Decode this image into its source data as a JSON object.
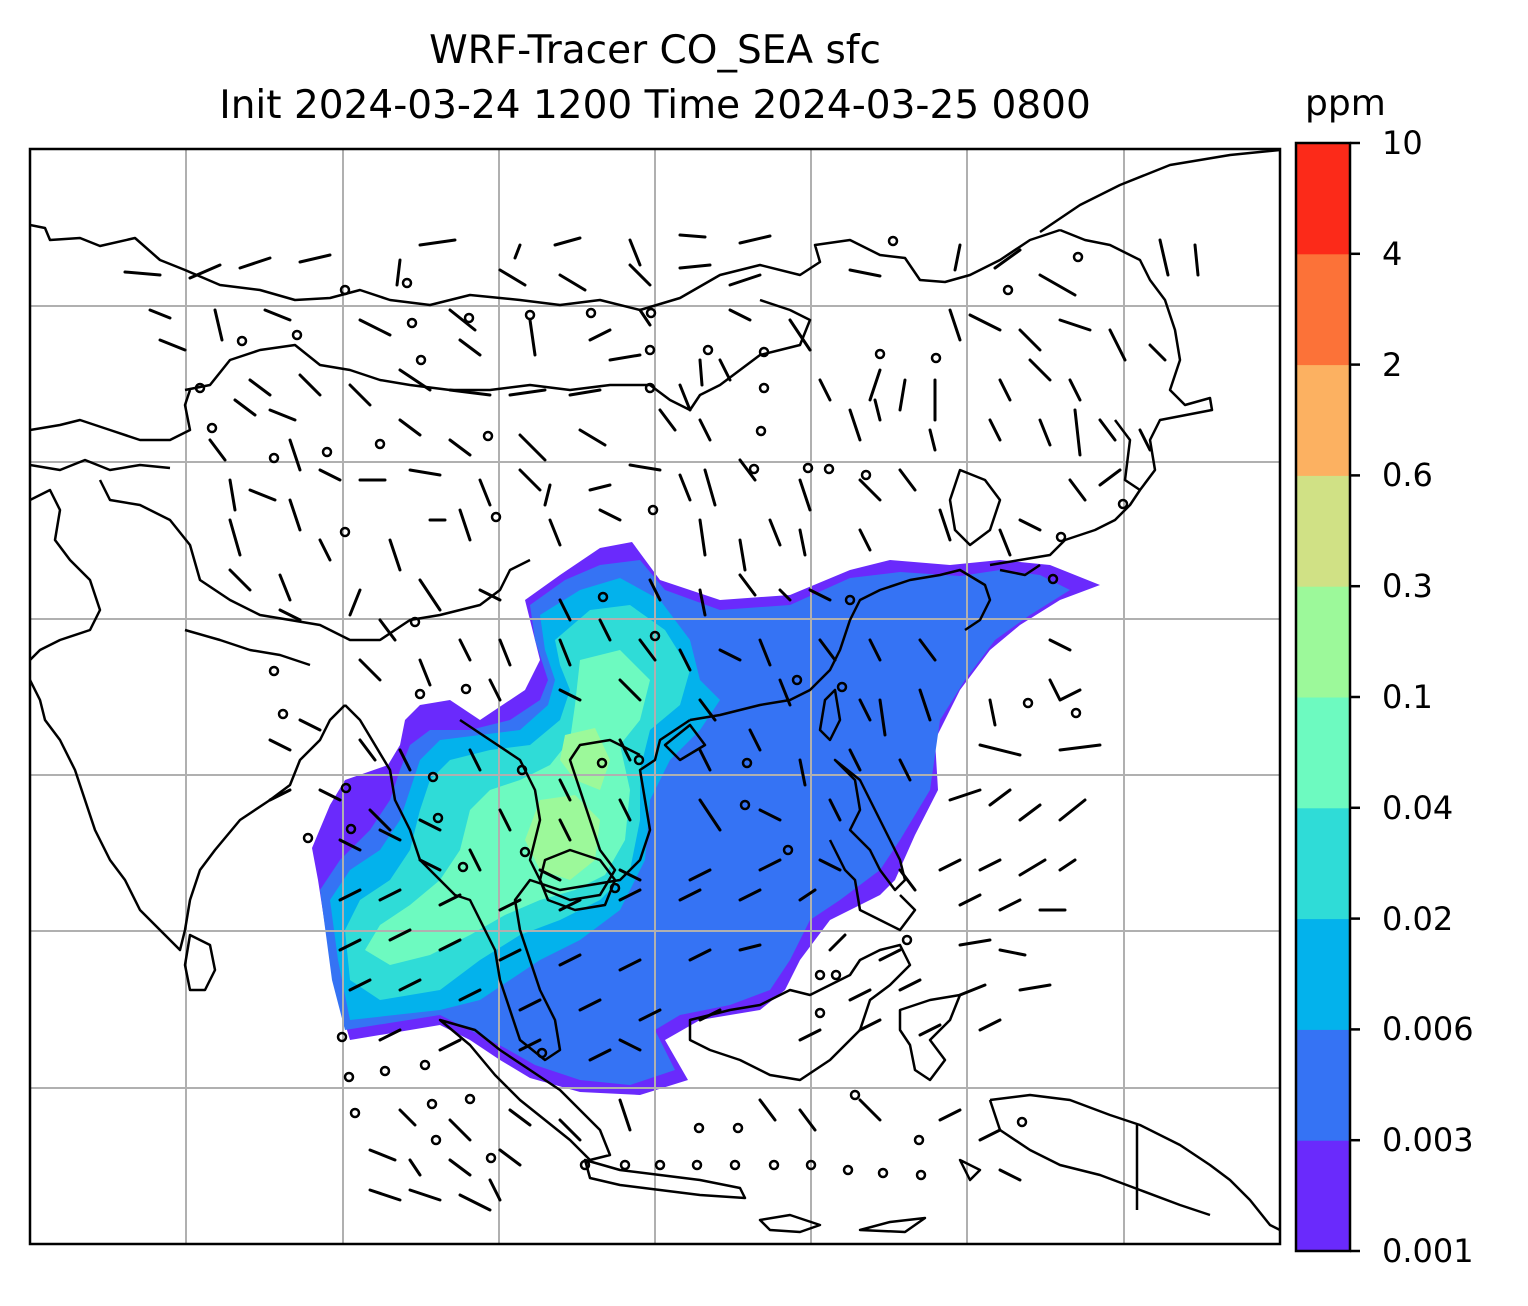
{
  "title": {
    "line1": "WRF-Tracer CO_SEA sfc",
    "line2": "Init 2024-03-24 1200 Time 2024-03-25 0800"
  },
  "colorbar": {
    "units": "ppm",
    "levels": [
      "0.001",
      "0.003",
      "0.006",
      "0.02",
      "0.04",
      "0.1",
      "0.3",
      "0.6",
      "2",
      "4",
      "10"
    ],
    "colors": [
      "#6a2afc",
      "#3573f4",
      "#03b2ec",
      "#2fdcd7",
      "#6dfac0",
      "#9cf99a",
      "#d0e185",
      "#fcb161",
      "#fc7238",
      "#fc2a19"
    ]
  },
  "map": {
    "gridlines": true,
    "wind_barbs": true,
    "coastlines": true
  }
}
